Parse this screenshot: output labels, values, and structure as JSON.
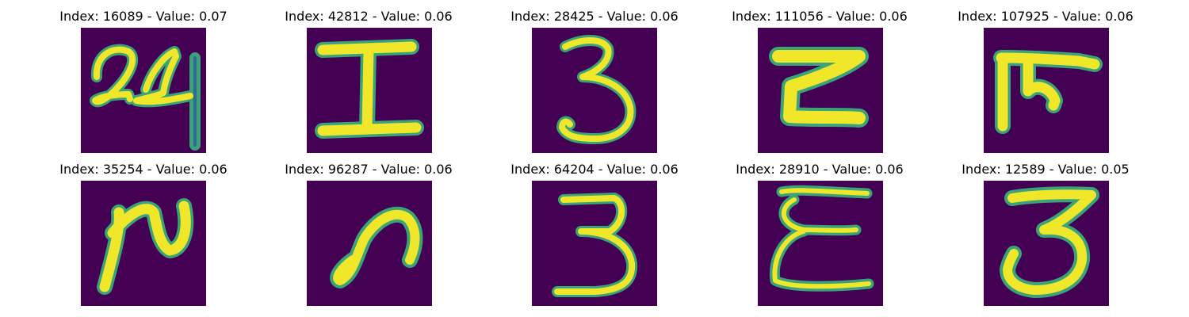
{
  "colors": {
    "background": "#ffffff",
    "panel_background": "#440154",
    "stroke_outer": "#3aa37a",
    "stroke_inner": "#f0e62a",
    "title_text": "#000000"
  },
  "colormap": "viridis",
  "panels": [
    {
      "title": "Index: 16089 - Value: 0.07",
      "index": 16089,
      "value": 0.07,
      "glyph": "24"
    },
    {
      "title": "Index: 42812 - Value: 0.06",
      "index": 42812,
      "value": 0.06,
      "glyph": "I"
    },
    {
      "title": "Index: 28425 - Value: 0.06",
      "index": 28425,
      "value": 0.06,
      "glyph": "3"
    },
    {
      "title": "Index: 111056 - Value: 0.06",
      "index": 111056,
      "value": 0.06,
      "glyph": "Z"
    },
    {
      "title": "Index: 107925 - Value: 0.06",
      "index": 107925,
      "value": 0.06,
      "glyph": "m"
    },
    {
      "title": "Index: 35254 - Value: 0.06",
      "index": 35254,
      "value": 0.06,
      "glyph": "N"
    },
    {
      "title": "Index: 96287 - Value: 0.06",
      "index": 96287,
      "value": 0.06,
      "glyph": "n"
    },
    {
      "title": "Index: 64204 - Value: 0.06",
      "index": 64204,
      "value": 0.06,
      "glyph": "3"
    },
    {
      "title": "Index: 28910 - Value: 0.06",
      "index": 28910,
      "value": 0.06,
      "glyph": "E"
    },
    {
      "title": "Index: 12589 - Value: 0.05",
      "index": 12589,
      "value": 0.05,
      "glyph": "3"
    }
  ]
}
